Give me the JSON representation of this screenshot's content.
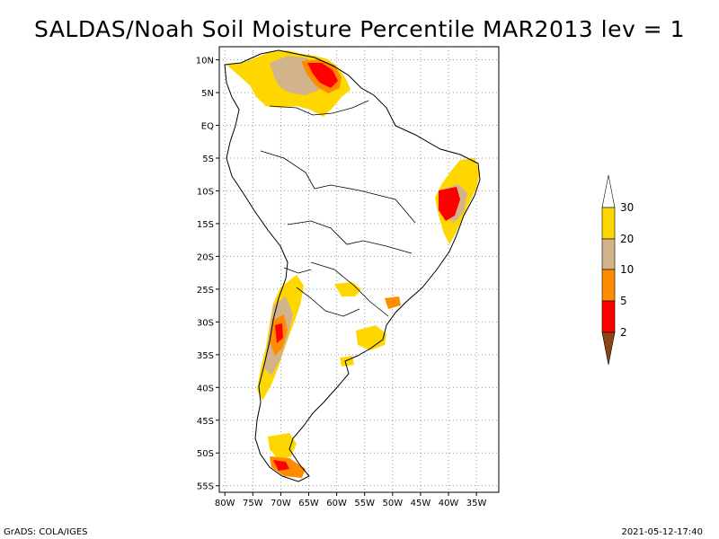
{
  "title": "SALDAS/Noah Soil Moisture Percentile MAR2013 lev = 1",
  "map": {
    "lat_labels": [
      "10N",
      "5N",
      "EQ",
      "5S",
      "10S",
      "15S",
      "20S",
      "25S",
      "30S",
      "35S",
      "40S",
      "45S",
      "50S",
      "55S"
    ],
    "lat_values": [
      10,
      5,
      0,
      -5,
      -10,
      -15,
      -20,
      -25,
      -30,
      -35,
      -40,
      -45,
      -50,
      -55
    ],
    "lon_labels": [
      "80W",
      "75W",
      "70W",
      "65W",
      "60W",
      "55W",
      "50W",
      "45W",
      "40W",
      "35W"
    ],
    "lon_values": [
      -80,
      -75,
      -70,
      -65,
      -60,
      -55,
      -50,
      -45,
      -40,
      -35
    ],
    "lat_range": [
      -56,
      12
    ],
    "lon_range": [
      -81,
      -31
    ],
    "grid": "dotted"
  },
  "colorbar": {
    "labels": [
      "2",
      "5",
      "10",
      "20",
      "30"
    ],
    "colors": {
      "below_2": "#8b4513",
      "2_5": "#ff0000",
      "5_10": "#ff8c00",
      "10_20": "#d2b48c",
      "20_30": "#ffd700",
      "above_30": "#ffffff"
    }
  },
  "footer": {
    "left": "GrADS: COLA/IGES",
    "right": "2021-05-12-17:40"
  }
}
